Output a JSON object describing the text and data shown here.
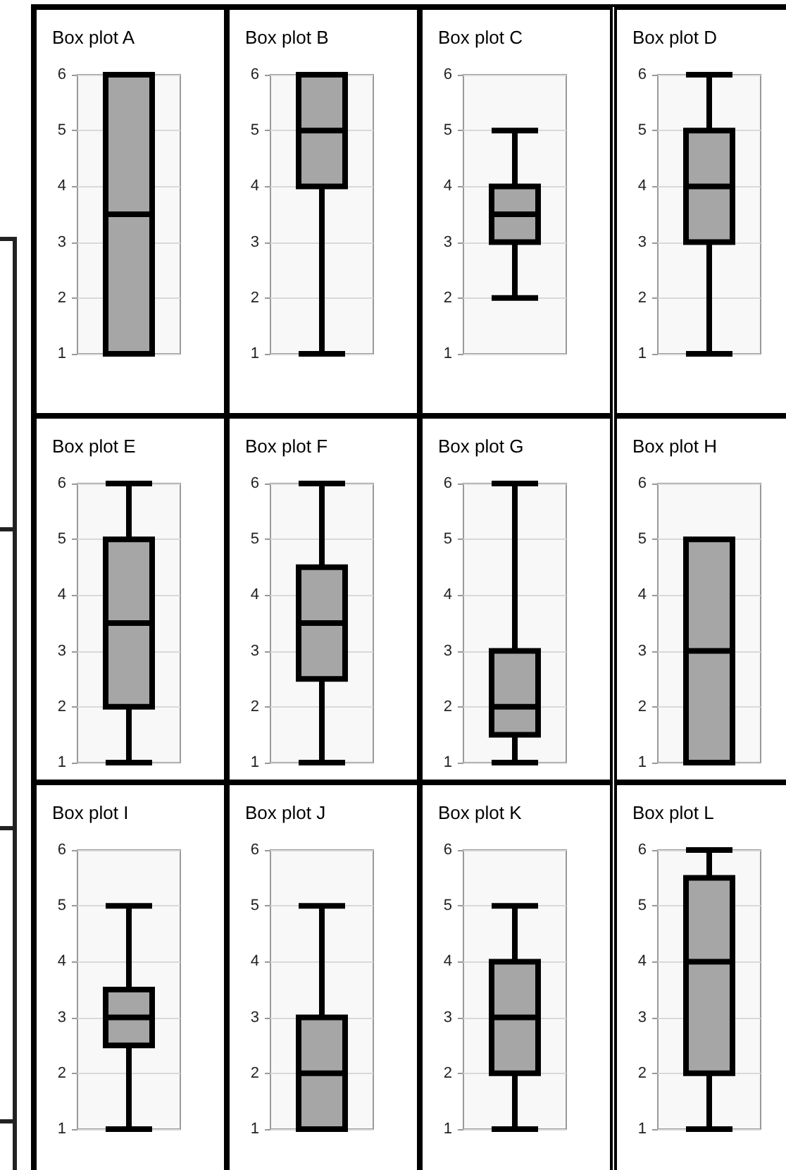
{
  "chart_data": [
    {
      "type": "box",
      "title": "Box plot A",
      "categories": [
        null
      ],
      "series": [
        {
          "color": "#a6a6a6",
          "boxes": [
            {
              "low": 1,
              "q1": 1,
              "median": 3.5,
              "q3": 6,
              "high": 6
            }
          ]
        }
      ],
      "ylim": [
        1,
        6
      ],
      "yticks": [
        1,
        2,
        3,
        4,
        5,
        6
      ],
      "grid": "y"
    },
    {
      "type": "box",
      "title": "Box plot B",
      "categories": [
        null
      ],
      "series": [
        {
          "color": "#a6a6a6",
          "boxes": [
            {
              "low": 1,
              "q1": 4,
              "median": 5,
              "q3": 6,
              "high": 6
            }
          ]
        }
      ],
      "ylim": [
        1,
        6
      ],
      "yticks": [
        1,
        2,
        3,
        4,
        5,
        6
      ],
      "grid": "y"
    },
    {
      "type": "box",
      "title": "Box plot C",
      "categories": [
        null
      ],
      "series": [
        {
          "color": "#a6a6a6",
          "boxes": [
            {
              "low": 2,
              "q1": 3,
              "median": 3.5,
              "q3": 4,
              "high": 5
            }
          ]
        }
      ],
      "ylim": [
        1,
        6
      ],
      "yticks": [
        1,
        2,
        3,
        4,
        5,
        6
      ],
      "grid": "y"
    },
    {
      "type": "box",
      "title": "Box plot D",
      "categories": [
        null
      ],
      "series": [
        {
          "color": "#a6a6a6",
          "boxes": [
            {
              "low": 1,
              "q1": 3,
              "median": 4,
              "q3": 5,
              "high": 6
            }
          ]
        }
      ],
      "ylim": [
        1,
        6
      ],
      "yticks": [
        1,
        2,
        3,
        4,
        5,
        6
      ],
      "grid": "y"
    },
    {
      "type": "box",
      "title": "Box plot E",
      "categories": [
        null
      ],
      "series": [
        {
          "color": "#a6a6a6",
          "boxes": [
            {
              "low": 1,
              "q1": 2,
              "median": 3.5,
              "q3": 5,
              "high": 6
            }
          ]
        }
      ],
      "ylim": [
        1,
        6
      ],
      "yticks": [
        1,
        2,
        3,
        4,
        5,
        6
      ],
      "grid": "y"
    },
    {
      "type": "box",
      "title": "Box plot F",
      "categories": [
        null
      ],
      "series": [
        {
          "color": "#a6a6a6",
          "boxes": [
            {
              "low": 1,
              "q1": 2.5,
              "median": 3.5,
              "q3": 4.5,
              "high": 6
            }
          ]
        }
      ],
      "ylim": [
        1,
        6
      ],
      "yticks": [
        1,
        2,
        3,
        4,
        5,
        6
      ],
      "grid": "y"
    },
    {
      "type": "box",
      "title": "Box plot G",
      "categories": [
        null
      ],
      "series": [
        {
          "color": "#a6a6a6",
          "boxes": [
            {
              "low": 1,
              "q1": 1.5,
              "median": 2,
              "q3": 3,
              "high": 6
            }
          ]
        }
      ],
      "ylim": [
        1,
        6
      ],
      "yticks": [
        1,
        2,
        3,
        4,
        5,
        6
      ],
      "grid": "y"
    },
    {
      "type": "box",
      "title": "Box plot H",
      "categories": [
        null
      ],
      "series": [
        {
          "color": "#a6a6a6",
          "boxes": [
            {
              "low": 1,
              "q1": 1,
              "median": 3,
              "q3": 5,
              "high": 5
            }
          ]
        }
      ],
      "ylim": [
        1,
        6
      ],
      "yticks": [
        1,
        2,
        3,
        4,
        5,
        6
      ],
      "grid": "y"
    },
    {
      "type": "box",
      "title": "Box plot I",
      "categories": [
        null
      ],
      "series": [
        {
          "color": "#a6a6a6",
          "boxes": [
            {
              "low": 1,
              "q1": 2.5,
              "median": 3,
              "q3": 3.5,
              "high": 5
            }
          ]
        }
      ],
      "ylim": [
        1,
        6
      ],
      "yticks": [
        1,
        2,
        3,
        4,
        5,
        6
      ],
      "grid": "y"
    },
    {
      "type": "box",
      "title": "Box plot J",
      "categories": [
        null
      ],
      "series": [
        {
          "color": "#a6a6a6",
          "boxes": [
            {
              "low": 1,
              "q1": 1,
              "median": 2,
              "q3": 3,
              "high": 5
            }
          ]
        }
      ],
      "ylim": [
        1,
        6
      ],
      "yticks": [
        1,
        2,
        3,
        4,
        5,
        6
      ],
      "grid": "y"
    },
    {
      "type": "box",
      "title": "Box plot K",
      "categories": [
        null
      ],
      "series": [
        {
          "color": "#a6a6a6",
          "boxes": [
            {
              "low": 1,
              "q1": 2,
              "median": 3,
              "q3": 4,
              "high": 5
            }
          ]
        }
      ],
      "ylim": [
        1,
        6
      ],
      "yticks": [
        1,
        2,
        3,
        4,
        5,
        6
      ],
      "grid": "y"
    },
    {
      "type": "box",
      "title": "Box plot L",
      "categories": [
        null
      ],
      "series": [
        {
          "color": "#a6a6a6",
          "boxes": [
            {
              "low": 1,
              "q1": 2,
              "median": 4,
              "q3": 5.5,
              "high": 6
            }
          ]
        }
      ],
      "ylim": [
        1,
        6
      ],
      "yticks": [
        1,
        2,
        3,
        4,
        5,
        6
      ],
      "grid": "y"
    }
  ]
}
